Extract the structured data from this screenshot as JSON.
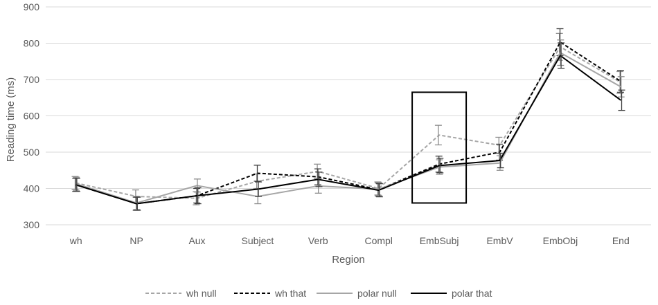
{
  "chart_data": {
    "type": "line",
    "title": "",
    "xlabel": "Region",
    "ylabel": "Reading time (ms)",
    "ylim": [
      300,
      900
    ],
    "yticks": [
      300,
      400,
      500,
      600,
      700,
      800,
      900
    ],
    "grid": "horizontal",
    "legend_position": "bottom",
    "categories": [
      "wh",
      "NP",
      "Aux",
      "Subject",
      "Verb",
      "Compl",
      "EmbSubj",
      "EmbV",
      "EmbObj",
      "End"
    ],
    "series": [
      {
        "name": "wh null",
        "color": "#a6a6a6",
        "style": "dashed",
        "values": [
          415,
          378,
          373,
          420,
          447,
          400,
          547,
          519,
          790,
          692
        ],
        "error": [
          18,
          18,
          18,
          20,
          20,
          18,
          27,
          22,
          37,
          30
        ]
      },
      {
        "name": "wh that",
        "color": "#000000",
        "style": "dashed",
        "values": [
          410,
          358,
          380,
          442,
          432,
          397,
          467,
          500,
          803,
          695
        ],
        "error": [
          18,
          18,
          20,
          22,
          22,
          18,
          22,
          22,
          37,
          30
        ]
      },
      {
        "name": "polar null",
        "color": "#a6a6a6",
        "style": "solid",
        "values": [
          413,
          360,
          408,
          378,
          407,
          398,
          459,
          470,
          774,
          680
        ],
        "error": [
          18,
          18,
          18,
          20,
          20,
          18,
          20,
          20,
          35,
          28
        ]
      },
      {
        "name": "polar that",
        "color": "#000000",
        "style": "solid",
        "values": [
          410,
          358,
          380,
          398,
          425,
          395,
          463,
          477,
          766,
          643
        ],
        "error": [
          18,
          18,
          22,
          20,
          20,
          18,
          20,
          20,
          35,
          28
        ]
      }
    ],
    "annotation": {
      "type": "box",
      "category": "EmbSubj",
      "y_range": [
        360,
        665
      ]
    }
  }
}
